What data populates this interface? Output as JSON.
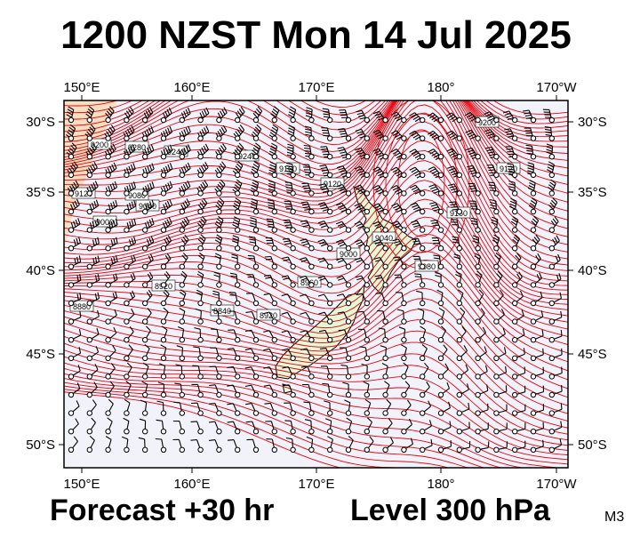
{
  "header": {
    "title": "1200 NZST Mon 14 Jul 2025"
  },
  "footer": {
    "forecast": "Forecast +30 hr",
    "level": "Level 300 hPa",
    "code": "M3"
  },
  "map": {
    "lon_ticks": [
      "150°E",
      "160°E",
      "170°E",
      "180°",
      "170°W"
    ],
    "lat_ticks": [
      "30°S",
      "35°S",
      "40°S",
      "45°S",
      "50°S"
    ],
    "contour_labels": [
      "9200",
      "9280",
      "9240",
      "9240",
      "9160",
      "9120",
      "9120",
      "9080",
      "9040",
      "9000",
      "9000",
      "8960",
      "8920",
      "8920",
      "8880",
      "8840",
      "9080",
      "9120",
      "9160",
      "9200",
      "9040"
    ],
    "colors": {
      "contour": "#e8000b",
      "ocean": "#f2f2fb",
      "land": "#e4f7d6",
      "warm_fill": "#f9d9b4"
    }
  }
}
